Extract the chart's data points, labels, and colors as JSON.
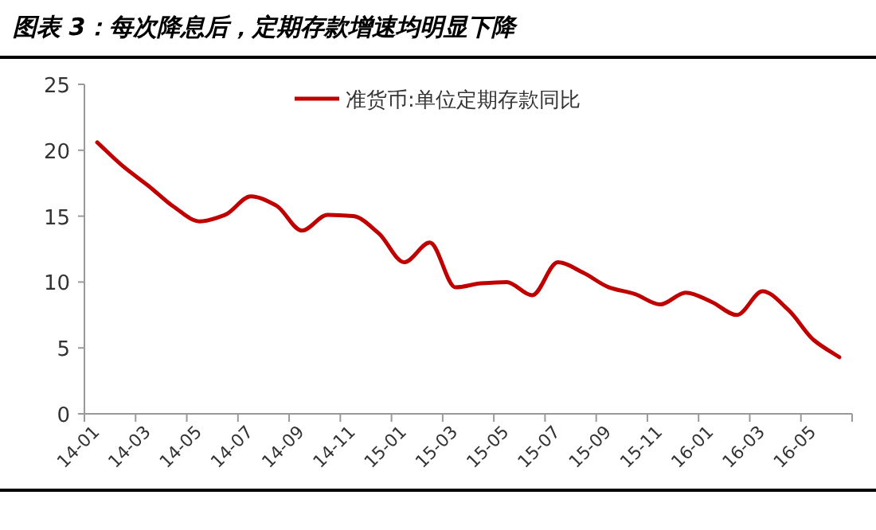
{
  "chart_data": {
    "type": "line",
    "title": "图表 3：每次降息后，定期存款增速均明显下降",
    "categories": [
      "14-01",
      null,
      "14-03",
      null,
      "14-05",
      null,
      "14-07",
      null,
      "14-09",
      null,
      "14-11",
      null,
      "15-01",
      null,
      "15-03",
      null,
      "15-05",
      null,
      "15-07",
      null,
      "15-09",
      null,
      "15-11",
      null,
      "16-01",
      null,
      "16-03",
      null,
      "16-05",
      null
    ],
    "series": [
      {
        "name": "准货币:单位定期存款同比",
        "color": "#c00000",
        "values": [
          20.6,
          18.8,
          17.3,
          15.7,
          14.6,
          15.1,
          16.5,
          15.8,
          13.9,
          15.1,
          15.0,
          13.7,
          11.5,
          13.0,
          9.6,
          9.9,
          10.0,
          9.0,
          11.5,
          10.7,
          9.6,
          9.1,
          8.3,
          9.2,
          8.5,
          7.5,
          9.3,
          7.9,
          5.6,
          4.3
        ]
      }
    ],
    "ylim": [
      0,
      25
    ],
    "yticks": [
      0,
      5,
      10,
      15,
      20,
      25
    ],
    "grid": false,
    "legend": "top",
    "marker": "none",
    "line_style": "solid"
  }
}
